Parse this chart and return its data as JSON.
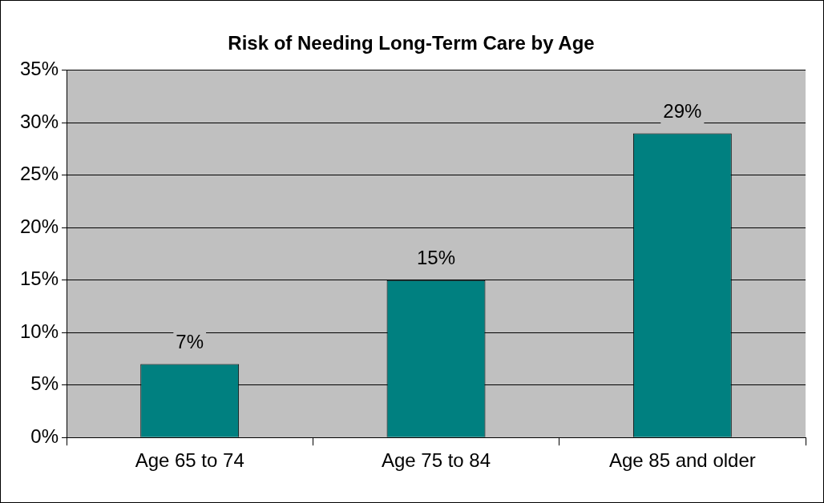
{
  "chart_data": {
    "type": "bar",
    "title": "Risk of Needing Long-Term Care by Age",
    "categories": [
      "Age 65 to 74",
      "Age 75 to 84",
      "Age 85 and older"
    ],
    "values": [
      7,
      15,
      29
    ],
    "color": "#008080",
    "value_labels": [
      "7%",
      "15%",
      "29%"
    ],
    "ylim": [
      0,
      35
    ],
    "yticks": [
      {
        "value": 0,
        "label": "0%"
      },
      {
        "value": 5,
        "label": "5%"
      },
      {
        "value": 10,
        "label": "10%"
      },
      {
        "value": 15,
        "label": "15%"
      },
      {
        "value": 20,
        "label": "20%"
      },
      {
        "value": 25,
        "label": "25%"
      },
      {
        "value": 30,
        "label": "30%"
      },
      {
        "value": 35,
        "label": "35%"
      }
    ],
    "grid": "y",
    "legend": false
  }
}
